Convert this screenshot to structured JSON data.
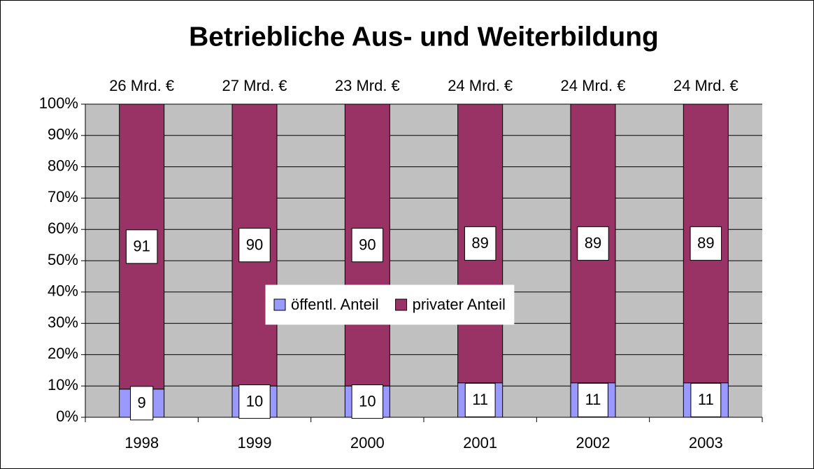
{
  "chart_data": {
    "type": "stacked_bar",
    "title": "Betriebliche Aus- und Weiterbildung",
    "categories": [
      "1998",
      "1999",
      "2000",
      "2001",
      "2002",
      "2003"
    ],
    "annotations": [
      "26 Mrd. €",
      "27 Mrd. €",
      "23 Mrd. €",
      "24 Mrd. €",
      "24 Mrd. €",
      "24 Mrd. €"
    ],
    "series": [
      {
        "name": "öffentl. Anteil",
        "color": "#9999ff",
        "values": [
          9,
          10,
          10,
          11,
          11,
          11
        ]
      },
      {
        "name": "privater Anteil",
        "color": "#993366",
        "values": [
          91,
          90,
          90,
          89,
          89,
          89
        ]
      }
    ],
    "ylim": [
      0,
      100
    ],
    "yticks": [
      {
        "value": 0,
        "label": "0%"
      },
      {
        "value": 10,
        "label": "10%"
      },
      {
        "value": 20,
        "label": "20%"
      },
      {
        "value": 30,
        "label": "30%"
      },
      {
        "value": 40,
        "label": "40%"
      },
      {
        "value": 50,
        "label": "50%"
      },
      {
        "value": 60,
        "label": "60%"
      },
      {
        "value": 70,
        "label": "70%"
      },
      {
        "value": 80,
        "label": "80%"
      },
      {
        "value": 90,
        "label": "90%"
      },
      {
        "value": 100,
        "label": "100%"
      }
    ],
    "grid": true,
    "plot_background": "#c0c0c0",
    "legend": "center"
  }
}
